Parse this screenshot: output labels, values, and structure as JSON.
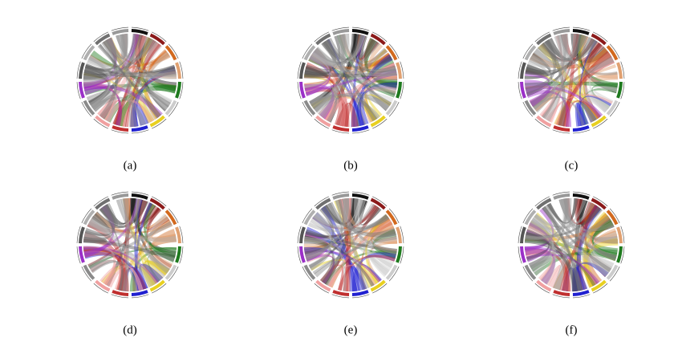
{
  "panels": [
    {
      "caption": "(a)"
    },
    {
      "caption": "(b)"
    },
    {
      "caption": "(c)"
    },
    {
      "caption": "(d)"
    },
    {
      "caption": "(e)"
    },
    {
      "caption": "(f)"
    }
  ]
}
